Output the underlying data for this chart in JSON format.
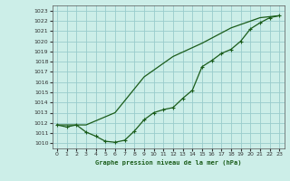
{
  "title": "Graphe pression niveau de la mer (hPa)",
  "background_color": "#cceee8",
  "grid_color": "#99cccc",
  "line_color": "#1a5c1a",
  "marker_color": "#1a5c1a",
  "xlim": [
    -0.5,
    23.5
  ],
  "ylim": [
    1009.5,
    1023.5
  ],
  "yticks": [
    1010,
    1011,
    1012,
    1013,
    1014,
    1015,
    1016,
    1017,
    1018,
    1019,
    1020,
    1021,
    1022,
    1023
  ],
  "xticks": [
    0,
    1,
    2,
    3,
    4,
    5,
    6,
    7,
    8,
    9,
    10,
    11,
    12,
    13,
    14,
    15,
    16,
    17,
    18,
    19,
    20,
    21,
    22,
    23
  ],
  "series1_x": [
    0,
    3,
    6,
    9,
    12,
    15,
    18,
    21,
    23
  ],
  "series1_y": [
    1011.8,
    1011.8,
    1013.0,
    1016.5,
    1018.5,
    1019.8,
    1021.3,
    1022.3,
    1022.5
  ],
  "series2_x": [
    0,
    1,
    2,
    3,
    4,
    5,
    6,
    7,
    8,
    9,
    10,
    11,
    12,
    13,
    14,
    15,
    16,
    17,
    18,
    19,
    20,
    21,
    22,
    23
  ],
  "series2_y": [
    1011.8,
    1011.6,
    1011.8,
    1011.1,
    1010.7,
    1010.2,
    1010.1,
    1010.3,
    1011.2,
    1012.3,
    1013.0,
    1013.3,
    1013.5,
    1014.4,
    1015.2,
    1017.5,
    1018.1,
    1018.8,
    1019.2,
    1020.0,
    1021.2,
    1021.8,
    1022.3,
    1022.5
  ]
}
